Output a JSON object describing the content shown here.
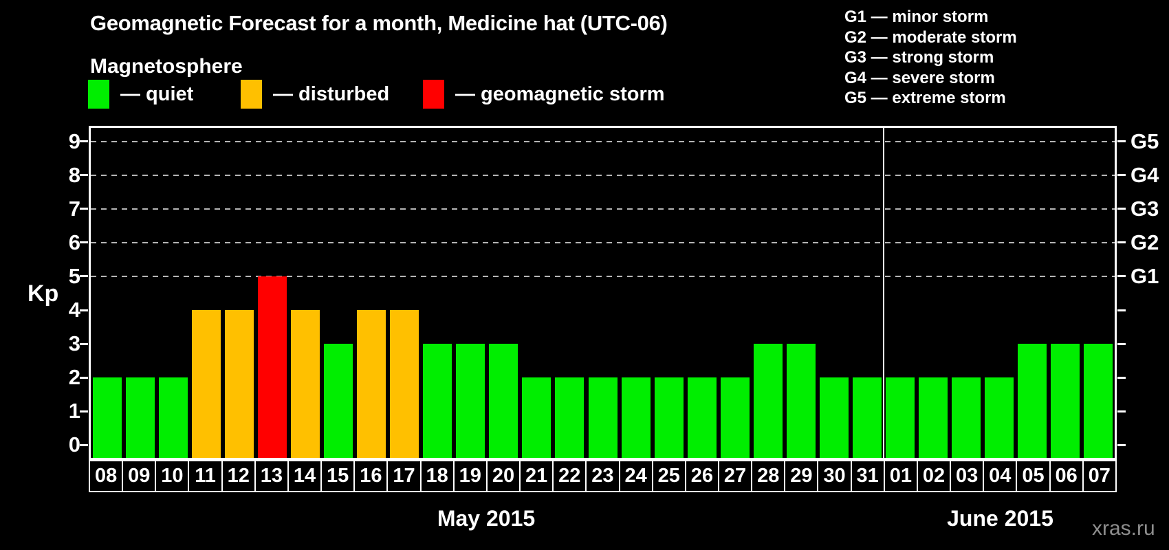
{
  "title": "Geomagnetic Forecast for a month, Medicine hat (UTC-06)",
  "subtitle": "Magnetosphere",
  "legend": {
    "items": [
      {
        "key": "quiet",
        "label": "— quiet",
        "color": "#00ee00"
      },
      {
        "key": "disturbed",
        "label": "— disturbed",
        "color": "#ffc000"
      },
      {
        "key": "storm",
        "label": "— geomagnetic storm",
        "color": "#ff0000"
      }
    ]
  },
  "storm_scale_legend": [
    "G1 — minor storm",
    "G2 — moderate storm",
    "G3 — strong storm",
    "G4 — severe storm",
    "G5 — extreme storm"
  ],
  "watermark": "xras.ru",
  "chart_data": {
    "type": "bar",
    "ylabel": "Kp",
    "ylim": [
      0,
      9
    ],
    "plot_kp_range": [
      -0.38,
      9.4
    ],
    "y_ticks": [
      0,
      1,
      2,
      3,
      4,
      5,
      6,
      7,
      8,
      9
    ],
    "grid_levels": [
      5,
      6,
      7,
      8,
      9
    ],
    "grid_on": true,
    "right_axis_labels": [
      {
        "kp": 5,
        "label": "G1"
      },
      {
        "kp": 6,
        "label": "G2"
      },
      {
        "kp": 7,
        "label": "G3"
      },
      {
        "kp": 8,
        "label": "G4"
      },
      {
        "kp": 9,
        "label": "G5"
      }
    ],
    "colors": {
      "quiet": "#00ee00",
      "disturbed": "#ffc000",
      "storm": "#ff0000"
    },
    "months": [
      {
        "label": "May 2015",
        "days": [
          [
            "08",
            2,
            "quiet"
          ],
          [
            "09",
            2,
            "quiet"
          ],
          [
            "10",
            2,
            "quiet"
          ],
          [
            "11",
            4,
            "disturbed"
          ],
          [
            "12",
            4,
            "disturbed"
          ],
          [
            "13",
            5,
            "storm"
          ],
          [
            "14",
            4,
            "disturbed"
          ],
          [
            "15",
            3,
            "quiet"
          ],
          [
            "16",
            4,
            "disturbed"
          ],
          [
            "17",
            4,
            "disturbed"
          ],
          [
            "18",
            3,
            "quiet"
          ],
          [
            "19",
            3,
            "quiet"
          ],
          [
            "20",
            3,
            "quiet"
          ],
          [
            "21",
            2,
            "quiet"
          ],
          [
            "22",
            2,
            "quiet"
          ],
          [
            "23",
            2,
            "quiet"
          ],
          [
            "24",
            2,
            "quiet"
          ],
          [
            "25",
            2,
            "quiet"
          ],
          [
            "26",
            2,
            "quiet"
          ],
          [
            "27",
            2,
            "quiet"
          ],
          [
            "28",
            3,
            "quiet"
          ],
          [
            "29",
            3,
            "quiet"
          ],
          [
            "30",
            2,
            "quiet"
          ],
          [
            "31",
            2,
            "quiet"
          ]
        ]
      },
      {
        "label": "June 2015",
        "days": [
          [
            "01",
            2,
            "quiet"
          ],
          [
            "02",
            2,
            "quiet"
          ],
          [
            "03",
            2,
            "quiet"
          ],
          [
            "04",
            2,
            "quiet"
          ],
          [
            "05",
            3,
            "quiet"
          ],
          [
            "06",
            3,
            "quiet"
          ],
          [
            "07",
            3,
            "quiet"
          ]
        ]
      }
    ]
  }
}
